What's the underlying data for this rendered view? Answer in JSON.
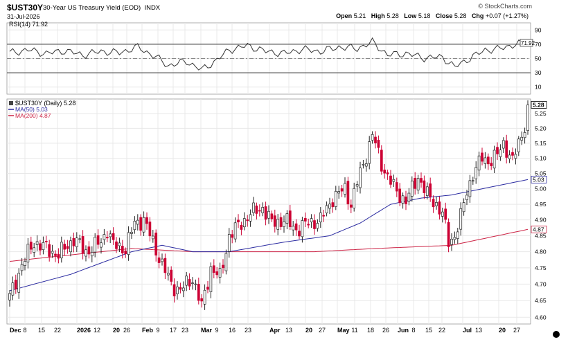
{
  "header": {
    "symbol": "$UST30Y",
    "description": "30-Year US Treasury Yield (EOD)",
    "exchange": "INDX",
    "date": "31-Jul-2026",
    "credit": "© StockCharts.com",
    "open_label": "Open",
    "open": "5.21",
    "high_label": "High",
    "high": "5.28",
    "low_label": "Low",
    "low": "5.18",
    "close_label": "Close",
    "close": "5.28",
    "chg_label": "Chg",
    "chg": "+0.07 (+1.27%)"
  },
  "rsi_panel": {
    "label": "RSI(14) 71.92",
    "current": 71.92,
    "ticks": [
      "90",
      "70",
      "50",
      "30",
      "10"
    ],
    "overbought": 70,
    "oversold": 30,
    "mid": 50
  },
  "price_panel": {
    "legend_main": "$UST30Y (Daily) 5.28",
    "legend_ma50": "MA(50) 5.03",
    "legend_ma200": "MA(200) 4.87",
    "last_price_tag": "5.28",
    "ma50_tag": "5.03",
    "ma200_tag": "4.87",
    "y_ticks": [
      "5.25",
      "5.20",
      "5.15",
      "5.10",
      "5.05",
      "5.00",
      "4.95",
      "4.90",
      "4.85",
      "4.80",
      "4.75",
      "4.70",
      "4.65",
      "4.60"
    ]
  },
  "x_axis": {
    "labels": [
      "Dec",
      "8",
      "15",
      "22",
      "2026",
      "12",
      "20",
      "26",
      "Feb",
      "9",
      "17",
      "23",
      "Mar",
      "9",
      "16",
      "23",
      "Apr",
      "13",
      "20",
      "27",
      "May",
      "11",
      "18",
      "26",
      "Jun",
      "8",
      "15",
      "22",
      "Jul",
      "13",
      "20",
      "27"
    ]
  },
  "colors": {
    "up": "#ffffff",
    "down": "#cc0033",
    "ma50": "#2a2aa0",
    "ma200": "#cc2244",
    "rsi": "#333333",
    "grid": "#e8e8e8"
  },
  "chart_data": {
    "type": "candlestick",
    "title": "$UST30Y 30-Year US Treasury Yield (EOD)",
    "ylim": [
      4.58,
      5.3
    ],
    "y_scale": "log",
    "anchors_close": [
      [
        0,
        4.66
      ],
      [
        4,
        4.76
      ],
      [
        8,
        4.83
      ],
      [
        12,
        4.81
      ],
      [
        16,
        4.79
      ],
      [
        21,
        4.84
      ],
      [
        25,
        4.8
      ],
      [
        30,
        4.83
      ],
      [
        32,
        4.87
      ],
      [
        34,
        4.82
      ],
      [
        38,
        4.81
      ],
      [
        41,
        4.89
      ],
      [
        44,
        4.9
      ],
      [
        47,
        4.83
      ],
      [
        50,
        4.76
      ],
      [
        53,
        4.7
      ],
      [
        56,
        4.68
      ],
      [
        60,
        4.72
      ],
      [
        63,
        4.63
      ],
      [
        66,
        4.75
      ],
      [
        69,
        4.72
      ],
      [
        72,
        4.85
      ],
      [
        75,
        4.88
      ],
      [
        79,
        4.92
      ],
      [
        83,
        4.94
      ],
      [
        86,
        4.89
      ],
      [
        90,
        4.9
      ],
      [
        94,
        4.87
      ],
      [
        98,
        4.89
      ],
      [
        102,
        4.9
      ],
      [
        106,
        4.97
      ],
      [
        110,
        5.0
      ],
      [
        112,
        4.95
      ],
      [
        114,
        5.02
      ],
      [
        117,
        5.11
      ],
      [
        119,
        5.18
      ],
      [
        122,
        5.08
      ],
      [
        124,
        5.04
      ],
      [
        127,
        4.99
      ],
      [
        130,
        4.96
      ],
      [
        134,
        5.04
      ],
      [
        137,
        4.98
      ],
      [
        140,
        4.95
      ],
      [
        142,
        4.92
      ],
      [
        144,
        4.83
      ],
      [
        146,
        4.85
      ],
      [
        148,
        4.91
      ],
      [
        150,
        4.99
      ],
      [
        152,
        5.05
      ],
      [
        155,
        5.1
      ],
      [
        157,
        5.09
      ],
      [
        160,
        5.11
      ],
      [
        162,
        5.15
      ],
      [
        165,
        5.09
      ],
      [
        167,
        5.15
      ],
      [
        169,
        5.21
      ],
      [
        170,
        5.28
      ]
    ],
    "ma50": [
      [
        0,
        4.68
      ],
      [
        20,
        4.73
      ],
      [
        40,
        4.8
      ],
      [
        50,
        4.82
      ],
      [
        60,
        4.8
      ],
      [
        72,
        4.8
      ],
      [
        90,
        4.83
      ],
      [
        105,
        4.85
      ],
      [
        115,
        4.89
      ],
      [
        125,
        4.95
      ],
      [
        135,
        4.97
      ],
      [
        145,
        4.98
      ],
      [
        160,
        5.01
      ],
      [
        170,
        5.03
      ]
    ],
    "ma200": [
      [
        0,
        4.77
      ],
      [
        20,
        4.79
      ],
      [
        40,
        4.81
      ],
      [
        60,
        4.8
      ],
      [
        80,
        4.8
      ],
      [
        100,
        4.8
      ],
      [
        120,
        4.81
      ],
      [
        145,
        4.82
      ],
      [
        160,
        4.85
      ],
      [
        170,
        4.87
      ]
    ],
    "rsi": [
      [
        0,
        58
      ],
      [
        6,
        62
      ],
      [
        12,
        57
      ],
      [
        18,
        61
      ],
      [
        24,
        55
      ],
      [
        30,
        60
      ],
      [
        36,
        58
      ],
      [
        42,
        66
      ],
      [
        48,
        52
      ],
      [
        52,
        40
      ],
      [
        58,
        46
      ],
      [
        63,
        34
      ],
      [
        68,
        48
      ],
      [
        72,
        62
      ],
      [
        78,
        68
      ],
      [
        84,
        60
      ],
      [
        90,
        57
      ],
      [
        96,
        63
      ],
      [
        102,
        60
      ],
      [
        108,
        66
      ],
      [
        114,
        64
      ],
      [
        119,
        73
      ],
      [
        124,
        55
      ],
      [
        130,
        57
      ],
      [
        136,
        51
      ],
      [
        142,
        52
      ],
      [
        146,
        38
      ],
      [
        150,
        48
      ],
      [
        156,
        62
      ],
      [
        160,
        63
      ],
      [
        166,
        70
      ],
      [
        170,
        72
      ]
    ]
  }
}
